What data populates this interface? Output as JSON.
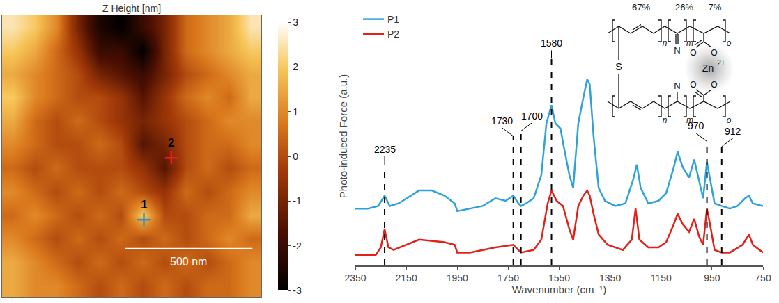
{
  "chart_data": [
    {
      "type": "heatmap",
      "title": "Z Height [nm]",
      "x": [
        42.5,
        127.5,
        212.5,
        297.5,
        382.5,
        467.5,
        552.5,
        637.5,
        722.5,
        807.5,
        892.5,
        977.5
      ],
      "y": [
        46.5,
        139.5,
        232.5,
        325.5,
        418.5,
        511.5,
        604.5,
        697.5,
        790.5,
        883.5,
        976.5,
        1069.5
      ],
      "z": [
        [
          1.5,
          1,
          1,
          0.5,
          0,
          0.5,
          0,
          0.5,
          0,
          0.5,
          0.5,
          1
        ],
        [
          1.5,
          1,
          0.5,
          0,
          0.5,
          0,
          0.5,
          0,
          0.5,
          0,
          0.5,
          1
        ],
        [
          1,
          0.5,
          0,
          0.5,
          0,
          0.5,
          0,
          0.5,
          0,
          0.5,
          1,
          0.5
        ],
        [
          0.5,
          1,
          0.5,
          0,
          0.5,
          0,
          2,
          0,
          0,
          0.5,
          0.5,
          1.5
        ],
        [
          1,
          0.5,
          0,
          0.5,
          0,
          0.5,
          0,
          -0.5,
          0.5,
          0,
          0.5,
          1
        ],
        [
          0.5,
          0,
          0.5,
          0,
          0,
          0,
          -0.5,
          -1.5,
          0,
          0.5,
          0,
          0.5
        ],
        [
          1,
          0.5,
          0,
          0,
          0.5,
          0,
          -1.5,
          -1,
          0,
          0.5,
          0.5,
          1
        ],
        [
          1.5,
          0.5,
          0,
          0.5,
          0,
          -0.5,
          -1,
          -0.5,
          0,
          0.5,
          1,
          1
        ],
        [
          2,
          1,
          0.5,
          0,
          0,
          -0.5,
          -1.5,
          -0.5,
          0.5,
          1,
          0.5,
          1.5
        ],
        [
          1.5,
          1,
          0.5,
          0,
          -1,
          -1.5,
          -2,
          -1,
          0,
          0.5,
          1,
          1.5
        ],
        [
          2,
          1.5,
          0.5,
          -0.5,
          -2,
          -2,
          -3,
          -1,
          0.5,
          1,
          1.5,
          2
        ],
        [
          2.5,
          2,
          1,
          -1,
          -2.5,
          -3,
          -2,
          -1,
          0.5,
          1,
          1.5,
          2.5
        ]
      ],
      "colorbar": {
        "range": [
          -3,
          3
        ],
        "ticks": [
          -3,
          -2,
          -1,
          0,
          1,
          2,
          3
        ]
      },
      "xlim": [
        0,
        1020
      ],
      "ylim": [
        0,
        1116
      ],
      "tick_labels": false,
      "points": [
        {
          "label": "1",
          "x": 558,
          "y": 307,
          "color": "#2f8fd0"
        },
        {
          "label": "2",
          "x": 666,
          "y": 552,
          "color": "#e3211b"
        }
      ],
      "scale_bar": {
        "x": [
          484,
          985
        ],
        "y": 193,
        "label": "500 nm"
      }
    },
    {
      "type": "line",
      "x_title": "Wavenumber (cm⁻¹)",
      "y_title": "Photo-induced Force (a.u.)",
      "xlim": [
        2350,
        750
      ],
      "xticks": [
        2350,
        2150,
        1950,
        1750,
        1550,
        1350,
        1150,
        950,
        750
      ],
      "ylim": [
        0,
        10
      ],
      "tick_labels": "x",
      "legend": "top left",
      "series": [
        {
          "name": "P1",
          "color": "#2fa3d9",
          "x": [
            2350,
            2300,
            2260,
            2235,
            2215,
            2180,
            2100,
            2050,
            2000,
            1960,
            1950,
            1900,
            1850,
            1800,
            1760,
            1730,
            1710,
            1700,
            1680,
            1650,
            1620,
            1600,
            1580,
            1565,
            1545,
            1530,
            1510,
            1495,
            1475,
            1455,
            1440,
            1430,
            1415,
            1395,
            1370,
            1330,
            1290,
            1260,
            1245,
            1230,
            1200,
            1160,
            1130,
            1100,
            1085,
            1065,
            1040,
            1020,
            1000,
            985,
            970,
            958,
            940,
            912,
            880,
            850,
            820,
            805,
            790,
            750
          ],
          "values": [
            2.2,
            2.2,
            2.3,
            2.7,
            2.3,
            2.4,
            2.9,
            2.9,
            2.7,
            2.4,
            2.1,
            2.2,
            2.3,
            2.6,
            2.5,
            2.7,
            2.4,
            2.3,
            2.4,
            2.6,
            3.5,
            5.5,
            6.2,
            5.5,
            5.3,
            4.5,
            3.5,
            3.0,
            5.5,
            6.5,
            7.2,
            7.0,
            5.0,
            3.0,
            2.5,
            2.3,
            2.4,
            3.3,
            3.9,
            3.0,
            2.4,
            2.5,
            2.8,
            3.8,
            4.4,
            3.8,
            3.4,
            4.1,
            3.2,
            2.6,
            4.0,
            3.4,
            2.4,
            2.3,
            2.2,
            2.3,
            2.6,
            2.7,
            2.4,
            2.3
          ]
        },
        {
          "name": "P2",
          "color": "#e3211b",
          "x": [
            2350,
            2270,
            2250,
            2235,
            2220,
            2200,
            2100,
            2000,
            1960,
            1950,
            1900,
            1800,
            1730,
            1700,
            1650,
            1620,
            1595,
            1580,
            1560,
            1535,
            1510,
            1495,
            1475,
            1455,
            1440,
            1430,
            1415,
            1395,
            1360,
            1300,
            1265,
            1250,
            1235,
            1200,
            1160,
            1130,
            1100,
            1085,
            1065,
            1040,
            1020,
            1000,
            985,
            970,
            958,
            940,
            912,
            880,
            830,
            805,
            790,
            750
          ],
          "values": [
            0.4,
            0.4,
            0.7,
            1.4,
            0.7,
            0.6,
            1.0,
            0.9,
            0.8,
            0.5,
            0.5,
            0.7,
            0.8,
            0.5,
            0.6,
            1.0,
            2.4,
            2.9,
            2.5,
            2.3,
            1.4,
            1.0,
            2.3,
            2.7,
            2.9,
            2.7,
            2.0,
            1.2,
            0.8,
            0.6,
            1.0,
            2.2,
            1.0,
            0.7,
            0.7,
            0.9,
            1.6,
            2.0,
            1.6,
            1.3,
            1.8,
            1.1,
            0.8,
            2.2,
            1.6,
            0.6,
            0.5,
            0.5,
            0.8,
            1.2,
            0.8,
            0.5
          ]
        }
      ],
      "annotations": [
        {
          "x": 2235,
          "y": 3.9,
          "text": "2235"
        },
        {
          "x": 1730,
          "y": 5.0,
          "text": "1730"
        },
        {
          "x": 1700,
          "y": 5.2,
          "text": "1700"
        },
        {
          "x": 1580,
          "y": 8.0,
          "text": "1580"
        },
        {
          "x": 970,
          "y": 4.8,
          "text": "970"
        },
        {
          "x": 912,
          "y": 4.6,
          "text": "912"
        }
      ],
      "structure": {
        "fractions": [
          "67%",
          "26%",
          "7%"
        ],
        "repeat_units": [
          "n",
          "m",
          "o"
        ],
        "sulfur": "S",
        "nitrile": "N",
        "oxygen": "O",
        "anion_charge": "−",
        "metal": "Zn",
        "metal_charge": "2+"
      }
    }
  ]
}
